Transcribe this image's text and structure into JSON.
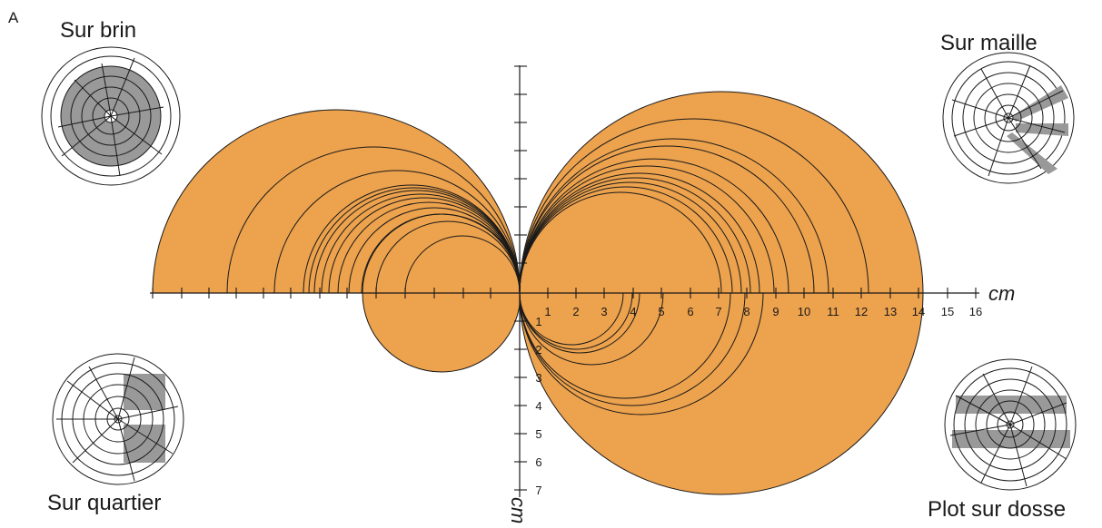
{
  "panel_label": "A",
  "insets": {
    "sur_brin": "Sur brin",
    "sur_maille": "Sur maille",
    "sur_quartier": "Sur quartier",
    "plot_sur_dosse": "Plot sur dosse"
  },
  "axis": {
    "x_unit": "cm",
    "y_unit": "cm",
    "x_ticks": [
      "1",
      "2",
      "3",
      "4",
      "5",
      "6",
      "7",
      "8",
      "9",
      "10",
      "11",
      "12",
      "13",
      "14",
      "15",
      "16"
    ],
    "y_ticks": [
      "1",
      "2",
      "3",
      "4",
      "5",
      "6",
      "7"
    ]
  },
  "colors": {
    "fill": "#EDA24D",
    "line": "#1a1a1a",
    "inset_gray": "#999999"
  }
}
